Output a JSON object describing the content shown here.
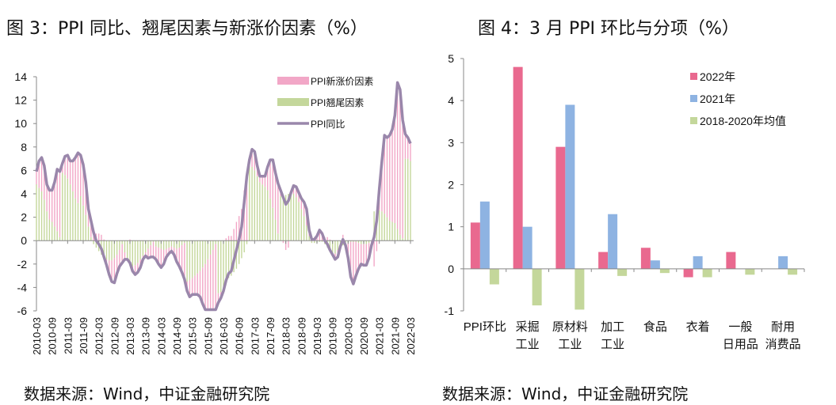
{
  "left": {
    "title": "图 3：PPI 同比、翘尾因素与新涨价因素（%）",
    "source": "数据来源：Wind，中证金融研究院"
  },
  "right": {
    "title": "图 4：3 月 PPI 环比与分项（%）",
    "source": "数据来源：Wind，中证金融研究院"
  },
  "chart_data": [
    {
      "type": "bar+line",
      "start_month": "2010-03",
      "end_month": "2022-03",
      "ylim": [
        -6,
        14
      ],
      "yticks": [
        -6,
        -4,
        -2,
        0,
        2,
        4,
        6,
        8,
        10,
        12,
        14
      ],
      "xtick_labels": [
        "2010-03",
        "2010-09",
        "2011-03",
        "2011-09",
        "2012-03",
        "2012-09",
        "2013-03",
        "2013-09",
        "2014-03",
        "2014-09",
        "2015-03",
        "2015-09",
        "2016-03",
        "2016-09",
        "2017-03",
        "2017-09",
        "2018-03",
        "2018-09",
        "2019-03",
        "2019-09",
        "2020-03",
        "2020-09",
        "2021-03",
        "2021-09",
        "2022-03"
      ],
      "legend_position": "top-right",
      "colors": {
        "new_factor": "#f2a7c7",
        "carryover": "#c4d79b",
        "yoy": "#9a87ab"
      },
      "series": [
        {
          "name": "PPI新涨价因素",
          "kind": "stacked-bar",
          "derived": "yoy minus carryover"
        },
        {
          "name": "PPI翘尾因素",
          "kind": "stacked-bar",
          "values": [
            4.8,
            4.5,
            4.2,
            3.5,
            2.5,
            1.8,
            1.6,
            1.2,
            0.8,
            0.3,
            5.8,
            5.6,
            5.3,
            4.8,
            4.2,
            3.6,
            3.2,
            3.8,
            3.0,
            2.2,
            1.2,
            0.3,
            -0.3,
            -0.6,
            -0.9,
            -1.2,
            -1.5,
            -1.6,
            -1.7,
            -1.7,
            -1.5,
            -1.2,
            -0.8,
            -0.3,
            -1.0,
            -1.5,
            -2.0,
            -2.2,
            -2.1,
            -1.9,
            -1.6,
            -1.3,
            -1.0,
            -0.7,
            -0.4,
            -0.1,
            -0.5,
            -0.6,
            -0.7,
            -0.8,
            -0.7,
            -0.6,
            -0.5,
            -0.6,
            -0.7,
            -0.6,
            -0.4,
            -0.2,
            -3.5,
            -3.4,
            -3.2,
            -3.0,
            -2.8,
            -2.6,
            -2.3,
            -2.0,
            -1.6,
            -1.2,
            -0.8,
            -0.3,
            -4.5,
            -4.4,
            -4.0,
            -3.6,
            -3.2,
            -3.0,
            -2.7,
            -2.4,
            -2.0,
            -1.5,
            -1.0,
            -0.3,
            6.6,
            6.3,
            6.0,
            5.5,
            5.0,
            4.8,
            4.6,
            4.3,
            3.6,
            2.8,
            1.8,
            0.6,
            3.8,
            3.9,
            3.9,
            4.0,
            4.1,
            4.0,
            3.7,
            3.3,
            2.7,
            2.1,
            1.3,
            0.4,
            -0.2,
            -0.2,
            -0.2,
            -0.1,
            -0.1,
            -0.3,
            -0.6,
            -0.9,
            -1.1,
            -1.1,
            -0.8,
            -0.3,
            -0.4,
            -0.3,
            -0.2,
            -0.1,
            -0.1,
            -0.1,
            -0.2,
            -0.3,
            -0.3,
            -0.3,
            -0.2,
            -0.1,
            2.5,
            2.6,
            2.6,
            2.5,
            2.3,
            2.0,
            1.7,
            1.6,
            1.5,
            1.0,
            0.5,
            0.2,
            7.0,
            7.0,
            6.8
          ]
        },
        {
          "name": "PPI同比",
          "kind": "line",
          "values": [
            5.9,
            6.8,
            7.1,
            6.4,
            4.8,
            4.3,
            4.3,
            5.0,
            6.1,
            5.9,
            6.6,
            7.2,
            7.3,
            6.8,
            6.8,
            7.1,
            7.5,
            7.3,
            6.5,
            5.0,
            2.7,
            1.7,
            0.7,
            0.0,
            -0.3,
            -0.7,
            -1.4,
            -2.1,
            -2.9,
            -3.5,
            -3.6,
            -2.8,
            -2.2,
            -1.9,
            -1.6,
            -1.6,
            -1.9,
            -2.6,
            -2.9,
            -2.7,
            -2.3,
            -1.6,
            -1.3,
            -1.5,
            -1.4,
            -1.4,
            -1.6,
            -2.0,
            -2.3,
            -2.0,
            -1.4,
            -1.1,
            -0.9,
            -1.2,
            -1.8,
            -2.2,
            -2.7,
            -3.3,
            -4.3,
            -4.8,
            -4.6,
            -4.6,
            -4.6,
            -4.8,
            -5.4,
            -5.9,
            -5.9,
            -5.9,
            -5.9,
            -5.9,
            -5.3,
            -4.9,
            -4.3,
            -3.4,
            -2.8,
            -2.6,
            -1.7,
            -0.8,
            0.1,
            1.2,
            3.3,
            5.5,
            6.9,
            7.8,
            7.6,
            6.4,
            5.5,
            5.5,
            5.5,
            6.3,
            6.9,
            6.9,
            5.8,
            4.9,
            4.3,
            3.7,
            3.1,
            3.4,
            4.1,
            4.7,
            4.6,
            4.1,
            3.6,
            3.3,
            2.7,
            0.9,
            0.1,
            0.1,
            0.4,
            0.9,
            0.6,
            0.0,
            -0.3,
            -0.8,
            -1.2,
            -1.6,
            -1.4,
            -0.5,
            0.1,
            -0.4,
            -1.5,
            -3.1,
            -3.7,
            -3.0,
            -2.4,
            -2.0,
            -2.1,
            -2.1,
            -1.5,
            -0.4,
            0.3,
            1.7,
            4.4,
            6.8,
            9.0,
            8.8,
            9.0,
            9.5,
            10.7,
            13.5,
            12.9,
            10.3,
            9.1,
            8.8,
            8.3
          ]
        }
      ]
    },
    {
      "type": "bar",
      "categories": [
        [
          "PPI环比"
        ],
        [
          "采掘",
          "工业"
        ],
        [
          "原材料",
          "工业"
        ],
        [
          "加工",
          "工业"
        ],
        [
          "食品"
        ],
        [
          "衣着"
        ],
        [
          "一般",
          "日用品"
        ],
        [
          "耐用",
          "消费品"
        ]
      ],
      "ylim": [
        -1,
        5
      ],
      "yticks": [
        -1,
        0,
        1,
        2,
        3,
        4,
        5
      ],
      "legend_position": "top-right",
      "series": [
        {
          "name": "2022年",
          "color": "#e9698f",
          "values": [
            1.1,
            4.8,
            2.9,
            0.4,
            0.5,
            -0.2,
            0.4,
            0
          ]
        },
        {
          "name": "2021年",
          "color": "#8eb3e2",
          "values": [
            1.6,
            1.0,
            3.9,
            1.3,
            0.2,
            0.3,
            0,
            0.3
          ]
        },
        {
          "name": "2018-2020年均值",
          "color": "#c4d79b",
          "values": [
            -0.37,
            -0.87,
            -0.97,
            -0.17,
            -0.1,
            -0.2,
            -0.14,
            -0.14
          ]
        }
      ]
    }
  ]
}
